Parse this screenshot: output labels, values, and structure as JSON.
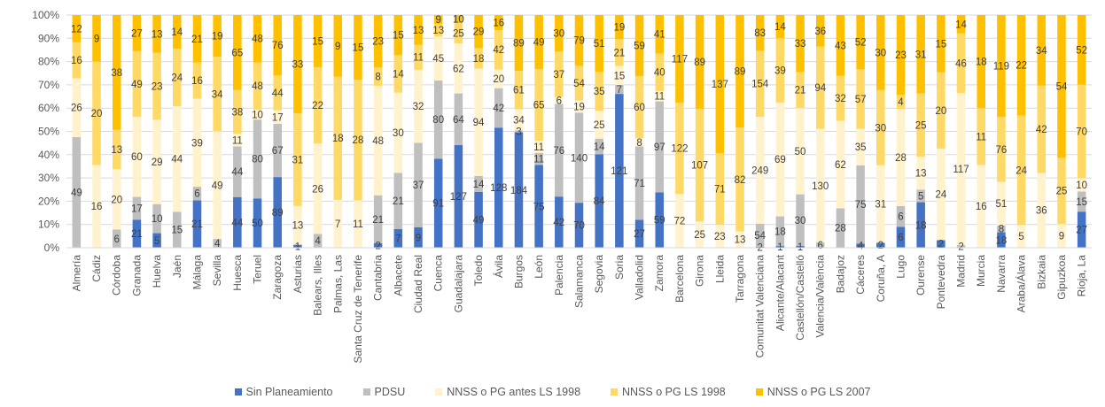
{
  "chart_data": {
    "type": "bar",
    "stacked": "percent",
    "title": "",
    "xlabel": "",
    "ylabel": "",
    "ylim": [
      0,
      100
    ],
    "yticks": [
      "0%",
      "10%",
      "20%",
      "30%",
      "40%",
      "50%",
      "60%",
      "70%",
      "80%",
      "90%",
      "100%"
    ],
    "grid": true,
    "legend_position": "bottom",
    "categories": [
      "Almería",
      "Cádiz",
      "Córdoba",
      "Granada",
      "Huelva",
      "Jaén",
      "Málaga",
      "Sevilla",
      "Huesca",
      "Teruel",
      "Zaragoza",
      "Asturias",
      "Balears, Illes",
      "Palmas, Las",
      "Santa Cruz de Tenerife",
      "Cantabria",
      "Albacete",
      "Ciudad Real",
      "Cuenca",
      "Guadalajara",
      "Toledo",
      "Ávila",
      "Burgos",
      "León",
      "Palencia",
      "Salamanca",
      "Segovia",
      "Soria",
      "Valladolid",
      "Zamora",
      "Barcelona",
      "Girona",
      "Lleida",
      "Tarragona",
      "Comunitat Valenciana",
      "Alicante/Alacant",
      "Castellón/Castelló",
      "Valencia/València",
      "Badajoz",
      "Cáceres",
      "Coruña, A",
      "Lugo",
      "Ourense",
      "Pontevedra",
      "Madrid",
      "Murcia",
      "Navarra",
      "Araba/Álava",
      "Bizkaia",
      "Gipuzkoa",
      "Rioja, La"
    ],
    "series": [
      {
        "name": "Sin Planeamiento",
        "color": "#4472C4",
        "values": [
          0,
          0,
          0,
          21,
          5,
          0,
          21,
          0,
          44,
          50,
          89,
          1,
          0,
          0,
          0,
          2,
          7,
          9,
          91,
          127,
          49,
          128,
          184,
          75,
          42,
          70,
          84,
          121,
          27,
          59,
          0,
          0,
          0,
          0,
          2,
          1,
          1,
          0,
          0,
          4,
          2,
          6,
          18,
          2,
          0,
          0,
          18,
          0,
          0,
          0,
          27
        ]
      },
      {
        "name": "PDSU",
        "color": "#BFBFBF",
        "values": [
          49,
          0,
          6,
          17,
          10,
          15,
          6,
          4,
          44,
          80,
          67,
          0,
          4,
          0,
          0,
          21,
          21,
          37,
          80,
          64,
          14,
          42,
          3,
          11,
          76,
          140,
          14,
          7,
          71,
          97,
          0,
          0,
          0,
          0,
          54,
          18,
          30,
          6,
          28,
          75,
          0,
          6,
          5,
          0,
          2,
          0,
          8,
          0,
          0,
          0,
          15
        ]
      },
      {
        "name": "NNSS o PG antes LS 1998",
        "color": "#FFF2CC",
        "values": [
          26,
          16,
          20,
          60,
          29,
          44,
          39,
          49,
          11,
          10,
          17,
          13,
          26,
          7,
          11,
          48,
          30,
          32,
          45,
          62,
          94,
          20,
          34,
          11,
          6,
          19,
          25,
          15,
          8,
          11,
          72,
          25,
          23,
          13,
          249,
          69,
          50,
          130,
          62,
          35,
          31,
          28,
          13,
          24,
          117,
          16,
          51,
          5,
          36,
          9,
          10
        ]
      },
      {
        "name": "NNSS o PG LS 1998",
        "color": "#FFD966",
        "values": [
          16,
          20,
          13,
          49,
          23,
          24,
          16,
          34,
          38,
          48,
          44,
          31,
          22,
          18,
          28,
          8,
          14,
          11,
          13,
          25,
          18,
          42,
          61,
          65,
          37,
          54,
          35,
          21,
          60,
          40,
          122,
          107,
          71,
          82,
          154,
          39,
          21,
          94,
          32,
          57,
          30,
          4,
          25,
          20,
          46,
          11,
          76,
          24,
          42,
          25,
          70
        ]
      },
      {
        "name": "NNSS o PG LS 2007",
        "color": "#FFC000",
        "values": [
          12,
          9,
          38,
          27,
          13,
          14,
          21,
          19,
          65,
          48,
          76,
          33,
          15,
          9,
          15,
          23,
          15,
          13,
          9,
          10,
          29,
          16,
          89,
          49,
          30,
          79,
          51,
          19,
          59,
          41,
          117,
          89,
          137,
          89,
          83,
          14,
          33,
          36,
          43,
          52,
          30,
          23,
          31,
          15,
          14,
          18,
          119,
          22,
          34,
          54,
          52
        ]
      }
    ]
  }
}
